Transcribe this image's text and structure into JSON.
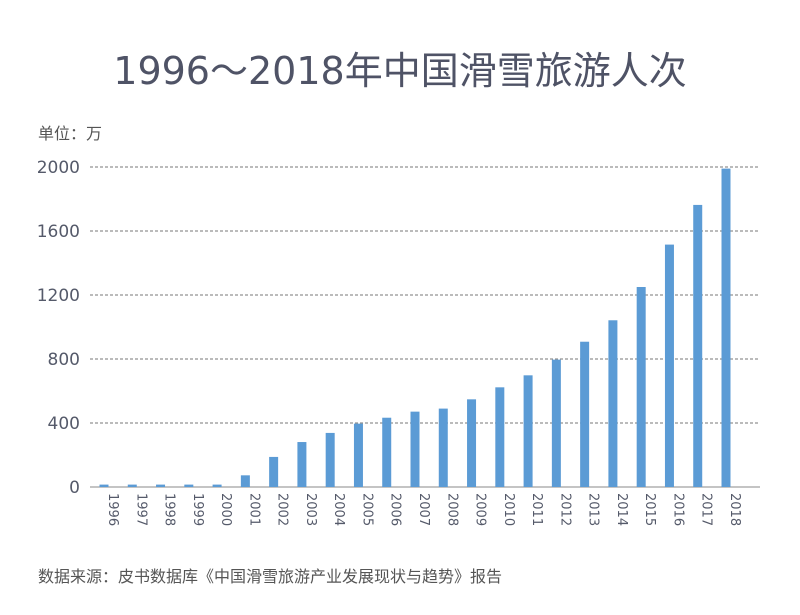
{
  "chart_data": {
    "type": "bar",
    "title": "1996～2018年中国滑雪旅游人次",
    "unit_label": "单位：万",
    "source": "数据来源：皮书数据库《中国滑雪旅游产业发展现状与趋势》报告",
    "categories": [
      "1996",
      "1997",
      "1998",
      "1999",
      "2000",
      "2001",
      "2002",
      "2003",
      "2004",
      "2005",
      "2006",
      "2007",
      "2008",
      "2009",
      "2010",
      "2011",
      "2012",
      "2013",
      "2014",
      "2015",
      "2016",
      "2017",
      "2018"
    ],
    "values": [
      15,
      15,
      15,
      15,
      15,
      73,
      188,
      281,
      338,
      396,
      433,
      471,
      490,
      548,
      623,
      698,
      796,
      908,
      1042,
      1250,
      1515,
      1763,
      1990
    ],
    "ylim": [
      0,
      2000
    ],
    "yticks": [
      "0",
      "400",
      "800",
      "1200",
      "1600",
      "2000"
    ],
    "grid": true,
    "bar_color": "#5b9bd5"
  }
}
